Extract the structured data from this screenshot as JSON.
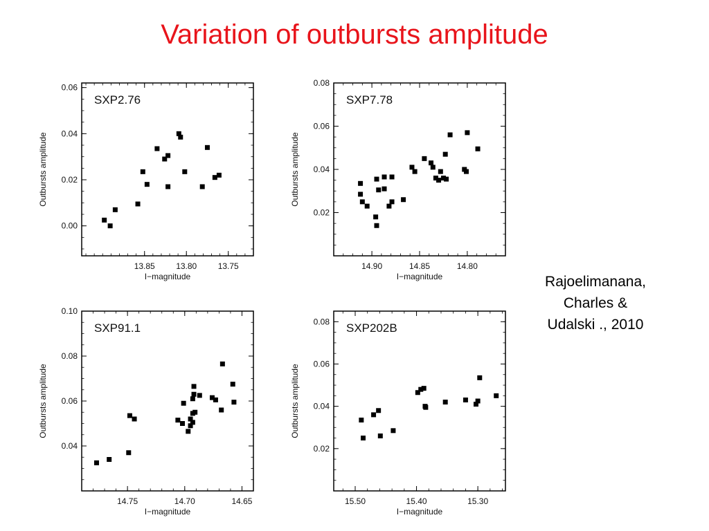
{
  "slide": {
    "title": "Variation of outbursts amplitude",
    "citation": [
      "Rajoelimanana,",
      "Charles &",
      "Udalski ., 2010"
    ]
  },
  "colors": {
    "title": "#e8141b",
    "marker": "#000000",
    "frame": "#000000"
  },
  "chart_data": [
    {
      "type": "scatter",
      "title": "SXP2.76",
      "xlabel": "I−magnitude",
      "ylabel": "Outbursts amplitude",
      "xlim": [
        13.925,
        13.72
      ],
      "ylim": [
        -0.013,
        0.062
      ],
      "xticks": [
        13.85,
        13.8,
        13.75
      ],
      "xticklabels": [
        "13.85",
        "13.80",
        "13.75"
      ],
      "yticks": [
        0.0,
        0.02,
        0.04,
        0.06
      ],
      "yticklabels": [
        "0.00",
        "0.02",
        "0.04",
        "0.06"
      ],
      "x": [
        13.898,
        13.891,
        13.885,
        13.858,
        13.852,
        13.847,
        13.835,
        13.826,
        13.822,
        13.822,
        13.809,
        13.807,
        13.802,
        13.781,
        13.775,
        13.766,
        13.761
      ],
      "y": [
        0.0025,
        0.0,
        0.007,
        0.0095,
        0.0235,
        0.018,
        0.0335,
        0.029,
        0.0305,
        0.017,
        0.04,
        0.0385,
        0.0235,
        0.017,
        0.034,
        0.021,
        0.022
      ]
    },
    {
      "type": "scatter",
      "title": "SXP7.78",
      "xlabel": "I−magnitude",
      "ylabel": "Outbursts amplitude",
      "xlim": [
        14.94,
        14.76
      ],
      "ylim": [
        0.0,
        0.08
      ],
      "xticks": [
        14.9,
        14.85,
        14.8
      ],
      "xticklabels": [
        "14.90",
        "14.85",
        "14.80"
      ],
      "yticks": [
        0.02,
        0.04,
        0.06,
        0.08
      ],
      "yticklabels": [
        "0.02",
        "0.04",
        "0.06",
        "0.08"
      ],
      "x": [
        14.912,
        14.912,
        14.91,
        14.905,
        14.896,
        14.895,
        14.895,
        14.893,
        14.887,
        14.887,
        14.882,
        14.879,
        14.879,
        14.867,
        14.858,
        14.855,
        14.845,
        14.838,
        14.836,
        14.833,
        14.83,
        14.828,
        14.825,
        14.823,
        14.822,
        14.818,
        14.803,
        14.801,
        14.8,
        14.789
      ],
      "y": [
        0.0335,
        0.0285,
        0.025,
        0.023,
        0.018,
        0.014,
        0.0355,
        0.0305,
        0.031,
        0.0365,
        0.023,
        0.025,
        0.0365,
        0.026,
        0.041,
        0.039,
        0.045,
        0.043,
        0.041,
        0.036,
        0.035,
        0.039,
        0.036,
        0.047,
        0.0355,
        0.056,
        0.04,
        0.039,
        0.057,
        0.0495
      ]
    },
    {
      "type": "scatter",
      "title": "SXP91.1",
      "xlabel": "I−magnitude",
      "ylabel": "Outbursts amplitude",
      "xlim": [
        14.79,
        14.64
      ],
      "ylim": [
        0.02,
        0.1
      ],
      "xticks": [
        14.75,
        14.7,
        14.65
      ],
      "xticklabels": [
        "14.75",
        "14.70",
        "14.65"
      ],
      "yticks": [
        0.04,
        0.06,
        0.08,
        0.1
      ],
      "yticklabels": [
        "0.04",
        "0.06",
        "0.08",
        "0.10"
      ],
      "x": [
        14.777,
        14.766,
        14.749,
        14.748,
        14.744,
        14.706,
        14.702,
        14.701,
        14.697,
        14.695,
        14.695,
        14.693,
        14.693,
        14.693,
        14.692,
        14.692,
        14.691,
        14.687,
        14.676,
        14.673,
        14.668,
        14.667,
        14.658,
        14.657
      ],
      "y": [
        0.0325,
        0.034,
        0.037,
        0.0535,
        0.052,
        0.0515,
        0.05,
        0.059,
        0.0465,
        0.049,
        0.052,
        0.0545,
        0.0505,
        0.061,
        0.0665,
        0.063,
        0.055,
        0.0625,
        0.0615,
        0.0605,
        0.056,
        0.0765,
        0.0675,
        0.0595
      ]
    },
    {
      "type": "scatter",
      "title": "SXP202B",
      "xlabel": "I−magnitude",
      "ylabel": "Outbursts amplitude",
      "xlim": [
        15.535,
        15.255
      ],
      "ylim": [
        0.0,
        0.085
      ],
      "xticks": [
        15.5,
        15.4,
        15.3
      ],
      "xticklabels": [
        "15.50",
        "15.40",
        "15.30"
      ],
      "yticks": [
        0.02,
        0.04,
        0.06,
        0.08
      ],
      "yticklabels": [
        "0.02",
        "0.04",
        "0.06",
        "0.08"
      ],
      "x": [
        15.49,
        15.487,
        15.47,
        15.462,
        15.459,
        15.438,
        15.398,
        15.393,
        15.388,
        15.386,
        15.385,
        15.353,
        15.32,
        15.303,
        15.3,
        15.297,
        15.27
      ],
      "y": [
        0.0335,
        0.025,
        0.036,
        0.038,
        0.026,
        0.0285,
        0.0465,
        0.048,
        0.0485,
        0.04,
        0.0395,
        0.042,
        0.043,
        0.041,
        0.0425,
        0.0535,
        0.045
      ]
    }
  ]
}
